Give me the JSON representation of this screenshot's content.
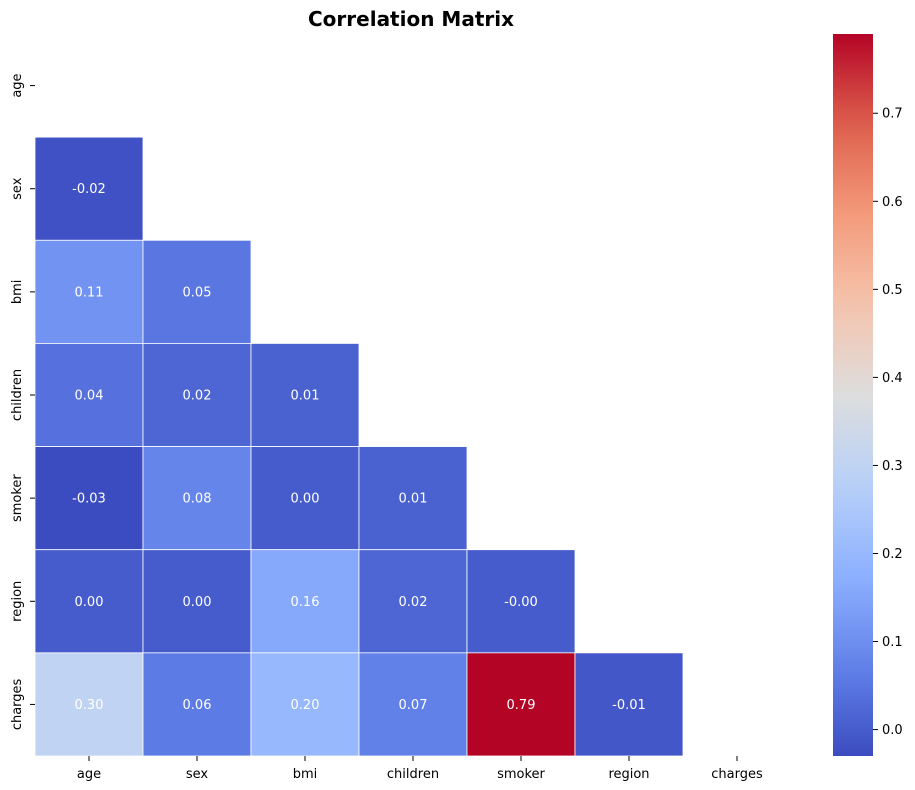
{
  "chart_data": {
    "type": "heatmap",
    "title": "Correlation Matrix",
    "variables": [
      "age",
      "sex",
      "bmi",
      "children",
      "smoker",
      "region",
      "charges"
    ],
    "mask": "upper-triangle-including-diagonal",
    "cells": [
      {
        "row": "sex",
        "col": "age",
        "value": -0.02,
        "label": "-0.02"
      },
      {
        "row": "bmi",
        "col": "age",
        "value": 0.11,
        "label": "0.11"
      },
      {
        "row": "bmi",
        "col": "sex",
        "value": 0.05,
        "label": "0.05"
      },
      {
        "row": "children",
        "col": "age",
        "value": 0.04,
        "label": "0.04"
      },
      {
        "row": "children",
        "col": "sex",
        "value": 0.02,
        "label": "0.02"
      },
      {
        "row": "children",
        "col": "bmi",
        "value": 0.01,
        "label": "0.01"
      },
      {
        "row": "smoker",
        "col": "age",
        "value": -0.03,
        "label": "-0.03"
      },
      {
        "row": "smoker",
        "col": "sex",
        "value": 0.08,
        "label": "0.08"
      },
      {
        "row": "smoker",
        "col": "bmi",
        "value": 0.0,
        "label": "0.00"
      },
      {
        "row": "smoker",
        "col": "children",
        "value": 0.01,
        "label": "0.01"
      },
      {
        "row": "region",
        "col": "age",
        "value": 0.0,
        "label": "0.00"
      },
      {
        "row": "region",
        "col": "sex",
        "value": 0.0,
        "label": "0.00"
      },
      {
        "row": "region",
        "col": "bmi",
        "value": 0.16,
        "label": "0.16"
      },
      {
        "row": "region",
        "col": "children",
        "value": 0.02,
        "label": "0.02"
      },
      {
        "row": "region",
        "col": "smoker",
        "value": -0.0,
        "label": "-0.00"
      },
      {
        "row": "charges",
        "col": "age",
        "value": 0.3,
        "label": "0.30"
      },
      {
        "row": "charges",
        "col": "sex",
        "value": 0.06,
        "label": "0.06"
      },
      {
        "row": "charges",
        "col": "bmi",
        "value": 0.2,
        "label": "0.20"
      },
      {
        "row": "charges",
        "col": "children",
        "value": 0.07,
        "label": "0.07"
      },
      {
        "row": "charges",
        "col": "smoker",
        "value": 0.79,
        "label": "0.79"
      },
      {
        "row": "charges",
        "col": "region",
        "value": -0.01,
        "label": "-0.01"
      }
    ],
    "colormap": "coolwarm",
    "color_range": [
      -0.03,
      0.79
    ],
    "colorbar_ticks": [
      0.0,
      0.1,
      0.2,
      0.3,
      0.4,
      0.5,
      0.6,
      0.7
    ],
    "colorbar_tick_labels": [
      "0.0",
      "0.1",
      "0.2",
      "0.3",
      "0.4",
      "0.5",
      "0.6",
      "0.7"
    ],
    "annotations": true,
    "cell_border_color": "#ffffff",
    "xlabel": "",
    "ylabel": ""
  }
}
